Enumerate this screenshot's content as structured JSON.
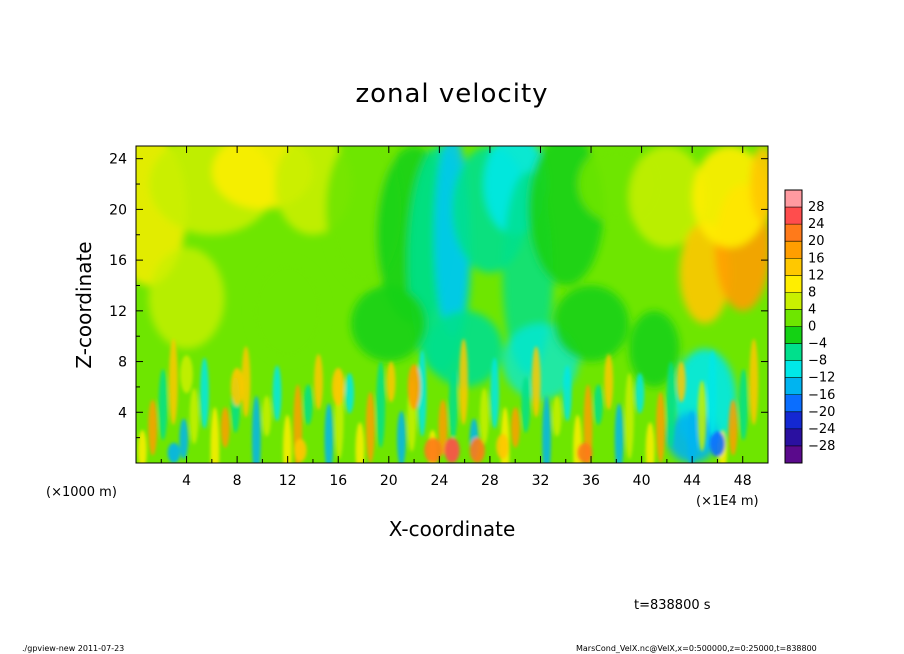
{
  "chart_data": {
    "type": "heatmap",
    "title": "zonal velocity",
    "xlabel": "X-coordinate",
    "ylabel": "Z-coordinate",
    "x_unit": "(×1E4 m)",
    "y_unit": "(×1000 m)",
    "xlim": [
      0,
      50
    ],
    "ylim": [
      0,
      25
    ],
    "x_ticks": [
      4,
      8,
      12,
      16,
      20,
      24,
      28,
      32,
      36,
      40,
      44,
      48
    ],
    "y_ticks": [
      4,
      8,
      12,
      16,
      20,
      24
    ],
    "color_levels": [
      28,
      24,
      20,
      16,
      12,
      8,
      4,
      0,
      -4,
      -8,
      -12,
      -16,
      -20,
      -24,
      -28
    ],
    "colorbar_colors": [
      "#ff9aa0",
      "#ff4d4d",
      "#ff7a1a",
      "#ff9e00",
      "#ffc800",
      "#ffee00",
      "#c8f000",
      "#6ee600",
      "#14d214",
      "#00e08c",
      "#00e8e8",
      "#00b4f0",
      "#0a6eff",
      "#1428d2",
      "#2a10a0",
      "#5a0a8c"
    ],
    "field_description": "Zonal velocity field: green/yellow background, positive (yellow–orange) streaks at left and far right (x≈44–50, z≈12–22), negative (cyan–blue) bands near x≈22–32 extending upward, oscillating small-scale cells near the bottom (z<8).",
    "time_label": "t=838800 s"
  },
  "footer": {
    "left": "./gpview-new  2011-07-23",
    "right": "MarsCond_VelX.nc@VelX,x=0:500000,z=0:25000,t=838800"
  }
}
